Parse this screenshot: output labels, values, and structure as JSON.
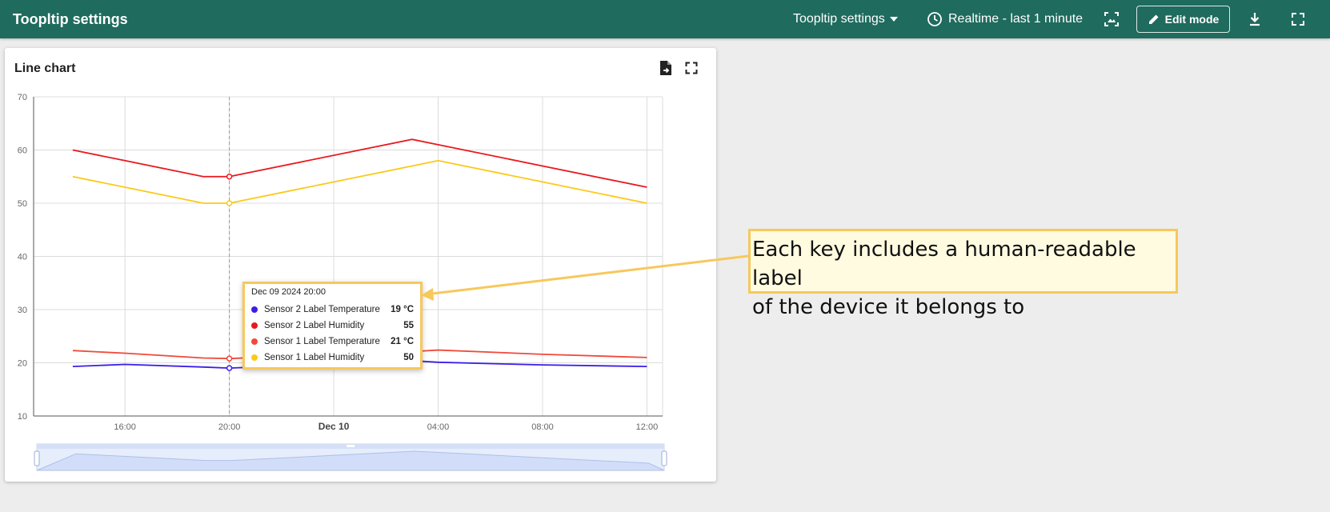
{
  "topbar": {
    "title": "Toopltip settings",
    "state_selector_label": "Toopltip settings",
    "timewindow_label": "Realtime - last 1 minute",
    "edit_mode_label": "Edit mode",
    "icons": {
      "dropdown": "arrow-drop-down-icon",
      "clock": "clock-icon",
      "image": "dashboard-image-icon",
      "edit": "pencil-icon",
      "download": "download-icon",
      "fullscreen": "fullscreen-icon"
    },
    "bar_color": "#1f6b5e"
  },
  "widget": {
    "title": "Line chart",
    "icons": {
      "export": "export-file-icon",
      "fullscreen": "fullscreen-icon"
    }
  },
  "chart_data": {
    "type": "line",
    "title": "Line chart",
    "xlabel": "",
    "ylabel": "",
    "ylim": [
      10,
      70
    ],
    "y_ticks": [
      "10",
      "20",
      "30",
      "40",
      "50",
      "60",
      "70"
    ],
    "x_tick_labels": [
      "16:00",
      "20:00",
      "Dec 10",
      "04:00",
      "08:00",
      "12:00"
    ],
    "x": [
      "Dec 09 14:00",
      "Dec 09 16:00",
      "Dec 09 19:00",
      "Dec 09 20:00",
      "Dec 10 03:00",
      "Dec 10 04:00",
      "Dec 10 08:00",
      "Dec 10 12:00"
    ],
    "series": [
      {
        "name": "Sensor 2 Label Temperature",
        "color": "#3b1ee8",
        "values": [
          19.3,
          19.7,
          19.2,
          19.0,
          20.4,
          20.1,
          19.6,
          19.3
        ]
      },
      {
        "name": "Sensor 2 Label Humidity",
        "color": "#e8191f",
        "values": [
          60,
          58,
          55,
          55,
          62,
          61,
          57,
          53
        ]
      },
      {
        "name": "Sensor 1 Label Temperature",
        "color": "#ef4a3a",
        "values": [
          22.3,
          21.8,
          20.9,
          20.8,
          22.1,
          22.4,
          21.6,
          21.0
        ]
      },
      {
        "name": "Sensor 1 Label Humidity",
        "color": "#fbc918",
        "values": [
          55,
          53,
          50,
          50,
          57,
          58,
          54,
          50
        ]
      }
    ],
    "grid": true,
    "hover_x": "Dec 09 20:00",
    "data_zoom": true
  },
  "tooltip": {
    "time": "Dec 09 2024 20:00",
    "rows": [
      {
        "label": "Sensor 2 Label Temperature",
        "value": "19 °C",
        "color": "#3b1ee8"
      },
      {
        "label": "Sensor 2 Label Humidity",
        "value": "55",
        "color": "#e8191f"
      },
      {
        "label": "Sensor 1 Label Temperature",
        "value": "21 °C",
        "color": "#ef4a3a"
      },
      {
        "label": "Sensor 1 Label Humidity",
        "value": "50",
        "color": "#fbc918"
      }
    ]
  },
  "callout": {
    "line1": "Each key includes a human-readable label",
    "line2": "of the device it belongs to",
    "border_color": "#f7c85c"
  }
}
